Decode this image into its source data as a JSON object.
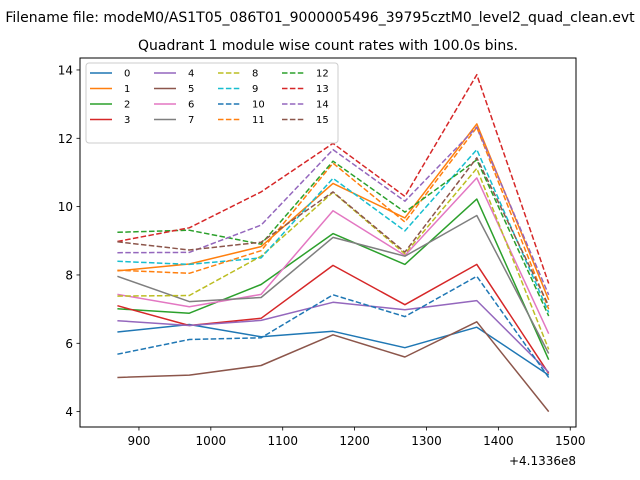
{
  "chart_data": {
    "type": "line",
    "suptitle": "Filename file: modeM0/AS1T05_086T01_9000005496_39795cztM0_level2_quad_clean.evt",
    "title": "Quadrant 1 module wise count rates with 100.0s bins.",
    "xlabel": "",
    "ylabel": "",
    "x_offset_label": "+4.1336e8",
    "x": [
      870,
      970,
      1070,
      1170,
      1270,
      1370,
      1470
    ],
    "xlim": [
      818,
      1508
    ],
    "ylim": [
      3.55,
      14.35
    ],
    "xticks": [
      900,
      1000,
      1100,
      1200,
      1300,
      1400,
      1500
    ],
    "yticks": [
      4,
      6,
      8,
      10,
      12,
      14
    ],
    "legend_loc": "upper left",
    "legend_ncol": 4,
    "series": [
      {
        "name": "0",
        "color": "#1f77b4",
        "dashed": false,
        "values": [
          6.33,
          6.55,
          6.19,
          6.35,
          5.87,
          6.47,
          5.07
        ]
      },
      {
        "name": "1",
        "color": "#ff7f0e",
        "dashed": false,
        "values": [
          8.12,
          8.32,
          8.83,
          10.68,
          9.67,
          12.42,
          7.27
        ]
      },
      {
        "name": "2",
        "color": "#2ca02c",
        "dashed": false,
        "values": [
          7.01,
          6.88,
          7.72,
          9.21,
          8.31,
          10.22,
          5.52
        ]
      },
      {
        "name": "3",
        "color": "#d62728",
        "dashed": false,
        "values": [
          7.1,
          6.52,
          6.73,
          8.28,
          7.13,
          8.31,
          5.12
        ]
      },
      {
        "name": "4",
        "color": "#9467bd",
        "dashed": false,
        "values": [
          6.66,
          6.52,
          6.67,
          7.2,
          6.98,
          7.25,
          5.15
        ]
      },
      {
        "name": "5",
        "color": "#8c564b",
        "dashed": false,
        "values": [
          5.0,
          5.07,
          5.35,
          6.25,
          5.6,
          6.63,
          4.0
        ]
      },
      {
        "name": "6",
        "color": "#e377c2",
        "dashed": false,
        "values": [
          7.43,
          7.07,
          7.43,
          9.88,
          8.57,
          10.84,
          6.28
        ]
      },
      {
        "name": "7",
        "color": "#7f7f7f",
        "dashed": false,
        "values": [
          7.96,
          7.22,
          7.34,
          9.1,
          8.55,
          9.74,
          5.7
        ]
      },
      {
        "name": "8",
        "color": "#bcbd22",
        "dashed": true,
        "values": [
          7.38,
          7.4,
          8.55,
          10.42,
          8.62,
          11.12,
          5.82
        ]
      },
      {
        "name": "9",
        "color": "#17becf",
        "dashed": true,
        "values": [
          8.4,
          8.31,
          8.5,
          10.83,
          9.29,
          11.67,
          6.9
        ]
      },
      {
        "name": "10",
        "color": "#1f77b4",
        "dashed": true,
        "values": [
          5.68,
          6.11,
          6.16,
          7.42,
          6.78,
          7.96,
          5.0
        ]
      },
      {
        "name": "11",
        "color": "#ff7f0e",
        "dashed": true,
        "values": [
          8.14,
          8.05,
          8.71,
          11.27,
          9.55,
          12.32,
          7.0
        ]
      },
      {
        "name": "12",
        "color": "#2ca02c",
        "dashed": true,
        "values": [
          9.25,
          9.31,
          8.9,
          11.33,
          9.84,
          11.37,
          6.8
        ]
      },
      {
        "name": "13",
        "color": "#d62728",
        "dashed": true,
        "values": [
          8.98,
          9.38,
          10.43,
          11.85,
          10.3,
          13.86,
          7.75
        ]
      },
      {
        "name": "14",
        "color": "#9467bd",
        "dashed": true,
        "values": [
          8.65,
          8.66,
          9.46,
          11.67,
          10.16,
          12.33,
          7.42
        ]
      },
      {
        "name": "15",
        "color": "#8c564b",
        "dashed": true,
        "values": [
          8.97,
          8.73,
          8.96,
          10.43,
          8.67,
          11.43,
          7.1
        ]
      }
    ]
  }
}
